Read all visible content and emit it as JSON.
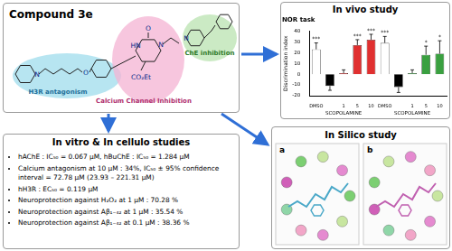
{
  "compound": {
    "title": "Compound 3e",
    "atoms": [
      "N",
      "O",
      "HN",
      "O",
      "N",
      "CO₂Et",
      "N"
    ],
    "regions": [
      {
        "label": "H3R antagonism",
        "color": "#9fdcec"
      },
      {
        "label": "Calcium Channel Inhibition",
        "color": "#f4b3d3"
      },
      {
        "label": "ChE inhibition",
        "color": "#b9e3b0"
      }
    ]
  },
  "in_vivo_title": "In vivo study",
  "chart_data": {
    "type": "bar",
    "title": "NOR task",
    "ylabel": "Discrimination index",
    "categories": [
      "DMSO",
      null,
      "1",
      "5",
      "10",
      "DMSO",
      null,
      "1",
      "5",
      "10"
    ],
    "values": [
      23,
      -11,
      1,
      27,
      32,
      29,
      -12,
      1,
      18,
      19
    ],
    "errors": [
      6,
      4,
      3,
      5,
      5,
      6,
      5,
      3,
      8,
      12
    ],
    "significance": [
      "***",
      null,
      null,
      "***",
      "***",
      "***",
      null,
      null,
      "*",
      "*"
    ],
    "colors": [
      "#ffffff",
      "#000000",
      "#e03030",
      "#e03030",
      "#e03030",
      "#ffffff",
      "#000000",
      "#3aa040",
      "#3aa040",
      "#3aa040"
    ],
    "ylim": [
      -20,
      40
    ],
    "yticks": [
      -20,
      -10,
      0,
      10,
      20,
      30,
      40
    ],
    "grid": false,
    "annotations": [
      "SCOPOLAMINE",
      "SCOPOLAMINE"
    ]
  },
  "in_vitro": {
    "title": "In vitro & In cellulo studies",
    "items": [
      "hAChE : IC₅₀ = 0.067 μM, hBuChE : IC₅₀ = 1.284 μM",
      "Calcium antagonism at 10 μM : 34%, IC₅₀ ± 95% confidence interval = 72.78 μM (23.93 – 221.31 μM)",
      "hH3R : EC₅₀ = 0.119 μM",
      "Neuroprotection against H₂O₂ at 1 μM : 70.28 %",
      "Neuroprotection against Aβ₁₋₄₂ at 1 μM : 35.54 %",
      "Neuroprotection against Aβ₁₋₄₂ at 0.1 μM : 38.36 %"
    ]
  },
  "in_silico": {
    "title": "In Silico study",
    "panels": [
      "a",
      "b"
    ]
  }
}
